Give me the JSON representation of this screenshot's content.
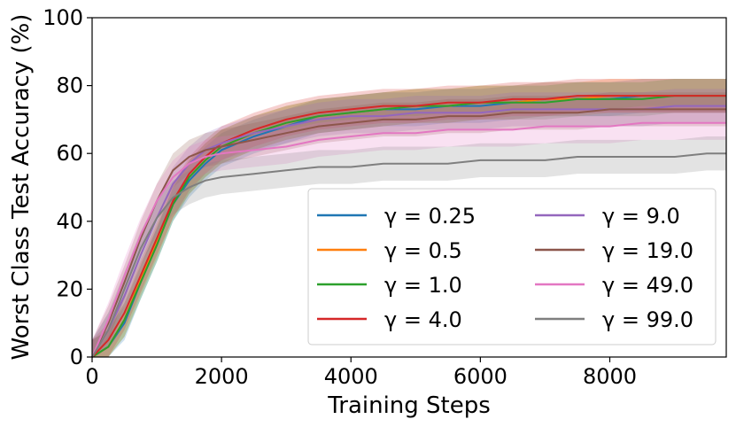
{
  "chart_data": {
    "type": "line",
    "xlabel": "Training Steps",
    "ylabel": "Worst Class Test Accuracy (%)",
    "xlim": [
      0,
      9800
    ],
    "ylim": [
      0,
      100
    ],
    "x_ticks": [
      "0",
      "2000",
      "4000",
      "6000",
      "8000"
    ],
    "y_ticks": [
      "0",
      "20",
      "40",
      "60",
      "80",
      "100"
    ],
    "legend_position": "lower-right",
    "legend_columns": 2,
    "grid": false,
    "x": [
      0,
      250,
      500,
      750,
      1000,
      1250,
      1500,
      1750,
      2000,
      2500,
      3000,
      3500,
      4000,
      4500,
      5000,
      5500,
      6000,
      6500,
      7000,
      7500,
      8000,
      8500,
      9000,
      9500,
      9800
    ],
    "series": [
      {
        "name": "γ = 0.25",
        "color": "#1f77b4",
        "band": 5,
        "values": [
          0,
          3,
          10,
          22,
          33,
          45,
          52,
          57,
          61,
          65,
          68,
          71,
          72,
          73,
          73,
          74,
          74,
          75,
          76,
          76,
          76,
          77,
          77,
          77,
          77
        ]
      },
      {
        "name": "γ = 0.5",
        "color": "#ff7f0e",
        "band": 5,
        "values": [
          0,
          3,
          11,
          23,
          34,
          46,
          53,
          58,
          62,
          66,
          69,
          71,
          72,
          73,
          74,
          74,
          75,
          75,
          76,
          76,
          77,
          77,
          77,
          77,
          77
        ]
      },
      {
        "name": "γ = 1.0",
        "color": "#2ca02c",
        "band": 5,
        "values": [
          0,
          3,
          11,
          22,
          33,
          45,
          53,
          58,
          62,
          66,
          69,
          71,
          72,
          73,
          74,
          74,
          75,
          75,
          75,
          76,
          76,
          76,
          77,
          77,
          77
        ]
      },
      {
        "name": "γ = 4.0",
        "color": "#d62728",
        "band": 5,
        "values": [
          0,
          5,
          13,
          24,
          35,
          46,
          54,
          59,
          63,
          67,
          70,
          72,
          73,
          74,
          74,
          75,
          75,
          76,
          76,
          77,
          77,
          77,
          77,
          77,
          77
        ]
      },
      {
        "name": "γ = 9.0",
        "color": "#9467bd",
        "band": 5,
        "values": [
          0,
          8,
          18,
          30,
          41,
          51,
          57,
          61,
          63,
          66,
          68,
          70,
          71,
          71,
          72,
          72,
          72,
          73,
          73,
          73,
          73,
          73,
          74,
          74,
          74
        ]
      },
      {
        "name": "γ = 19.0",
        "color": "#8c564b",
        "band": 5,
        "values": [
          0,
          10,
          22,
          35,
          46,
          55,
          59,
          61,
          62,
          64,
          66,
          68,
          69,
          70,
          70,
          71,
          71,
          72,
          72,
          72,
          73,
          73,
          73,
          73,
          73
        ]
      },
      {
        "name": "γ = 49.0",
        "color": "#e377c2",
        "band": 5,
        "values": [
          0,
          11,
          24,
          36,
          46,
          53,
          57,
          59,
          60,
          61,
          62,
          64,
          65,
          66,
          66,
          67,
          67,
          67,
          68,
          68,
          68,
          69,
          69,
          69,
          69
        ]
      },
      {
        "name": "γ = 99.0",
        "color": "#7f7f7f",
        "band": 5,
        "values": [
          0,
          8,
          20,
          32,
          41,
          47,
          50,
          52,
          53,
          54,
          55,
          56,
          56,
          57,
          57,
          57,
          58,
          58,
          58,
          59,
          59,
          59,
          59,
          60,
          60
        ]
      }
    ]
  }
}
